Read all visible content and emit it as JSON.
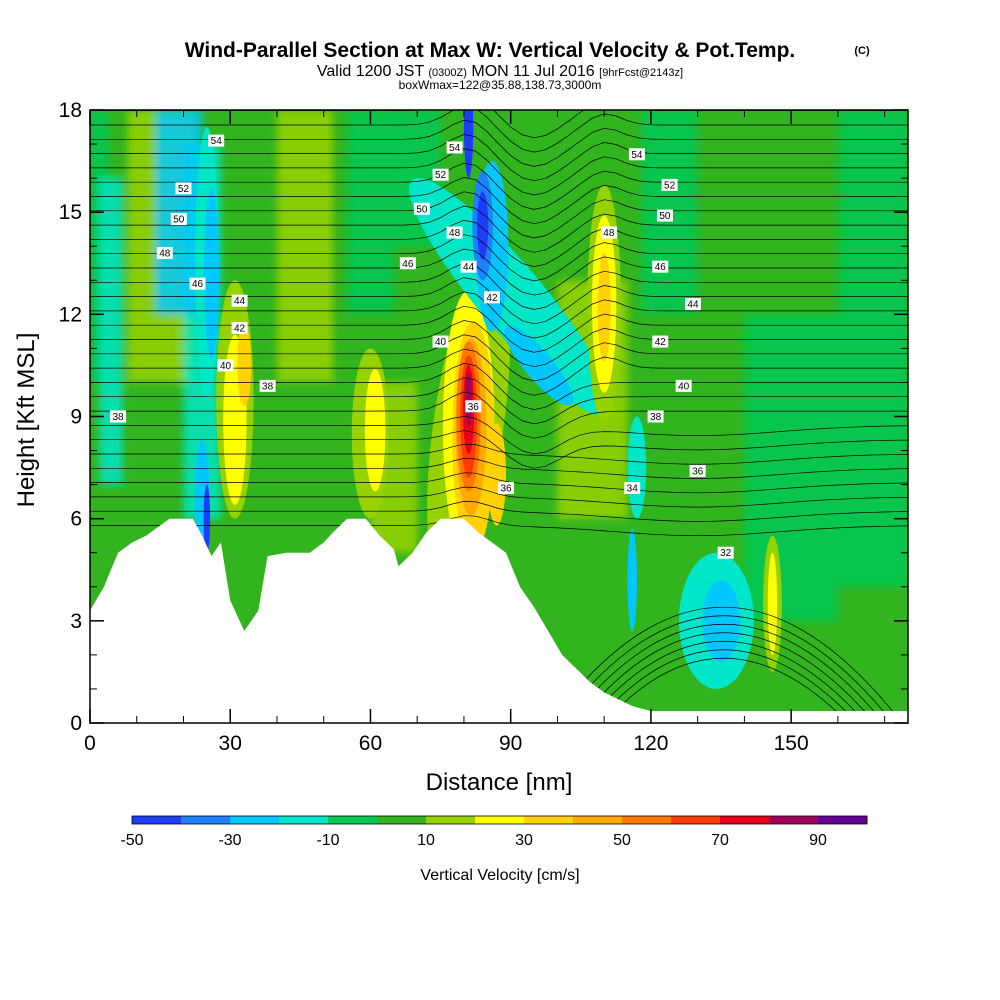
{
  "chart_data": {
    "type": "heatmap",
    "title": "Wind-Parallel Section at Max W: Vertical Velocity & Pot.Temp.",
    "title_mark": "(C)",
    "subtitle": {
      "valid": "Valid 1200 JST",
      "utc": "(0300Z)",
      "date": "MON 11 Jul 2016",
      "forecast": "[9hrFcst@2143z]"
    },
    "subtitle2": "boxWmax=122@35.88,138.73,3000m",
    "xlabel": "Distance [nm]",
    "ylabel": "Height [Kft MSL]",
    "xlim": [
      0,
      175
    ],
    "ylim": [
      0,
      18
    ],
    "xticks": [
      0,
      30,
      60,
      90,
      120,
      150
    ],
    "yticks": [
      0,
      3,
      6,
      9,
      12,
      15,
      18
    ],
    "colorbar": {
      "title": "Vertical Velocity [cm/s]",
      "labels": [
        -50,
        -30,
        -10,
        10,
        30,
        50,
        70,
        90
      ],
      "bins": [
        {
          "from": -50,
          "to": -40,
          "color": "#1e3cff"
        },
        {
          "from": -40,
          "to": -30,
          "color": "#1e82ff"
        },
        {
          "from": -30,
          "to": -20,
          "color": "#00c8ff"
        },
        {
          "from": -20,
          "to": -10,
          "color": "#00e6c8"
        },
        {
          "from": -10,
          "to": 0,
          "color": "#00c855"
        },
        {
          "from": 0,
          "to": 10,
          "color": "#32b41e"
        },
        {
          "from": 10,
          "to": 20,
          "color": "#96d200"
        },
        {
          "from": 20,
          "to": 30,
          "color": "#ffff00"
        },
        {
          "from": 30,
          "to": 40,
          "color": "#ffd200"
        },
        {
          "from": 40,
          "to": 50,
          "color": "#ffaa00"
        },
        {
          "from": 50,
          "to": 60,
          "color": "#ff7800"
        },
        {
          "from": 60,
          "to": 70,
          "color": "#ff3c00"
        },
        {
          "from": 70,
          "to": 80,
          "color": "#e6001e"
        },
        {
          "from": 80,
          "to": 90,
          "color": "#a0005a"
        },
        {
          "from": 90,
          "to": 100,
          "color": "#640096"
        }
      ]
    },
    "terrain_kft": [
      [
        0,
        3.3
      ],
      [
        3,
        4.0
      ],
      [
        6,
        5.0
      ],
      [
        9,
        5.3
      ],
      [
        12,
        5.5
      ],
      [
        15,
        5.8
      ],
      [
        17,
        6.0
      ],
      [
        22,
        6.0
      ],
      [
        24,
        5.5
      ],
      [
        26,
        4.9
      ],
      [
        28,
        5.3
      ],
      [
        30,
        3.6
      ],
      [
        33,
        2.7
      ],
      [
        36,
        3.3
      ],
      [
        38,
        4.9
      ],
      [
        42,
        5.0
      ],
      [
        47,
        5.0
      ],
      [
        50,
        5.3
      ],
      [
        52,
        5.6
      ],
      [
        55,
        6.0
      ],
      [
        59,
        6.0
      ],
      [
        62,
        5.5
      ],
      [
        65,
        5.1
      ],
      [
        66,
        4.6
      ],
      [
        69,
        5.0
      ],
      [
        72,
        5.6
      ],
      [
        75,
        6.0
      ],
      [
        80,
        6.0
      ],
      [
        83,
        5.6
      ],
      [
        86,
        5.3
      ],
      [
        89,
        5.0
      ],
      [
        92,
        4.0
      ],
      [
        95,
        3.4
      ],
      [
        98,
        2.7
      ],
      [
        101,
        2.0
      ],
      [
        104,
        1.6
      ],
      [
        107,
        1.2
      ],
      [
        110,
        0.9
      ],
      [
        113,
        0.7
      ],
      [
        116,
        0.5
      ],
      [
        120,
        0.35
      ],
      [
        175,
        0.35
      ]
    ],
    "w_features": [
      {
        "x": 81,
        "y": 8.7,
        "w_cms": 90,
        "note": "max updraft core"
      },
      {
        "x": 81,
        "y": 8.7,
        "w_cms": 70
      },
      {
        "x": 81,
        "y": 8.5,
        "w_cms": 50
      },
      {
        "x": 81,
        "y": 8.0,
        "w_cms": 30
      },
      {
        "x": 84,
        "y": 14.5,
        "w_cms": -50,
        "note": "downdraft core"
      },
      {
        "x": 96,
        "y": 10.0,
        "w_cms": -30
      },
      {
        "x": 110,
        "y": 12.0,
        "w_cms": 30
      },
      {
        "x": 30,
        "y": 8.5,
        "w_cms": 30
      },
      {
        "x": 60,
        "y": 8.5,
        "w_cms": 25
      },
      {
        "x": 25,
        "y": 6.0,
        "w_cms": -45
      },
      {
        "x": 26,
        "y": 13.0,
        "w_cms": -25
      },
      {
        "x": 135,
        "y": 3.0,
        "w_cms": -15
      },
      {
        "x": 146,
        "y": 3.5,
        "w_cms": 25
      }
    ],
    "isentrope_labels": [
      {
        "value": "54",
        "x": 27,
        "y": 17.1
      },
      {
        "value": "52",
        "x": 20,
        "y": 15.7
      },
      {
        "value": "50",
        "x": 19,
        "y": 14.8
      },
      {
        "value": "48",
        "x": 16,
        "y": 13.8
      },
      {
        "value": "46",
        "x": 23,
        "y": 12.9
      },
      {
        "value": "44",
        "x": 32,
        "y": 12.4
      },
      {
        "value": "42",
        "x": 32,
        "y": 11.6
      },
      {
        "value": "40",
        "x": 29,
        "y": 10.5
      },
      {
        "value": "38",
        "x": 38,
        "y": 9.9
      },
      {
        "value": "38",
        "x": 6,
        "y": 9.0
      },
      {
        "value": "54",
        "x": 78,
        "y": 16.9
      },
      {
        "value": "52",
        "x": 75,
        "y": 16.1
      },
      {
        "value": "50",
        "x": 71,
        "y": 15.1
      },
      {
        "value": "48",
        "x": 78,
        "y": 14.4
      },
      {
        "value": "46",
        "x": 68,
        "y": 13.5
      },
      {
        "value": "44",
        "x": 81,
        "y": 13.4
      },
      {
        "value": "42",
        "x": 86,
        "y": 12.5
      },
      {
        "value": "40",
        "x": 75,
        "y": 11.2
      },
      {
        "value": "36",
        "x": 82,
        "y": 9.3
      },
      {
        "value": "36",
        "x": 89,
        "y": 6.9
      },
      {
        "value": "48",
        "x": 111,
        "y": 14.4
      },
      {
        "value": "54",
        "x": 117,
        "y": 16.7
      },
      {
        "value": "52",
        "x": 124,
        "y": 15.8
      },
      {
        "value": "50",
        "x": 123,
        "y": 14.9
      },
      {
        "value": "46",
        "x": 122,
        "y": 13.4
      },
      {
        "value": "44",
        "x": 129,
        "y": 12.3
      },
      {
        "value": "42",
        "x": 122,
        "y": 11.2
      },
      {
        "value": "40",
        "x": 127,
        "y": 9.9
      },
      {
        "value": "38",
        "x": 121,
        "y": 9.0
      },
      {
        "value": "36",
        "x": 130,
        "y": 7.4
      },
      {
        "value": "34",
        "x": 116,
        "y": 6.9
      },
      {
        "value": "32",
        "x": 136,
        "y": 5.0
      }
    ],
    "grid": false,
    "legend": "colorbar-bottom"
  }
}
